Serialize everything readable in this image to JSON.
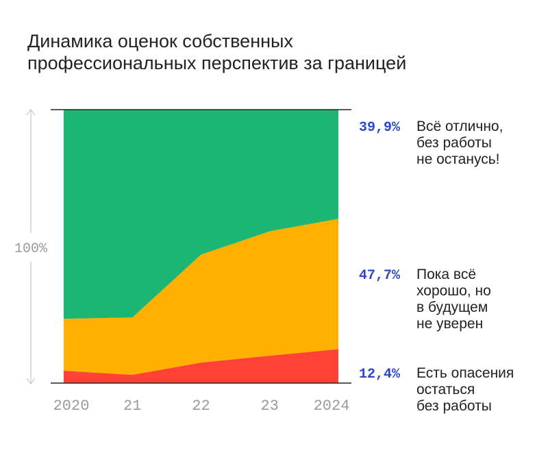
{
  "title": {
    "line1": "Динамика оценок собственных",
    "line2": "профессиональных перспектив за границей"
  },
  "chart_data": {
    "type": "area",
    "stacked": true,
    "normalized": true,
    "title": "Динамика оценок собственных профессиональных перспектив за границей",
    "ylabel": "100%",
    "ylim": [
      0,
      100
    ],
    "x": [
      "2020",
      "21",
      "22",
      "23",
      "2024"
    ],
    "series": [
      {
        "name": "Есть опасения остаться без работы",
        "color": "#ff4136",
        "values": [
          4.5,
          3.0,
          7.5,
          10.0,
          12.4
        ],
        "label_value": "12,4%",
        "label_lines": [
          "Есть опасения",
          "остаться",
          "без работы"
        ]
      },
      {
        "name": "Пока всё хорошо, но в будущем не уверен",
        "color": "#ffb000",
        "values": [
          19.0,
          21.0,
          39.5,
          45.5,
          47.7
        ],
        "label_value": "47,7%",
        "label_lines": [
          "Пока всё",
          "хорошо, но",
          "в будущем",
          "не уверен"
        ]
      },
      {
        "name": "Всё отлично, без работы не останусь!",
        "color": "#1db573",
        "values": [
          76.5,
          76.0,
          53.0,
          44.5,
          39.9
        ],
        "label_value": "39,9%",
        "label_lines": [
          "Всё отлично,",
          "без работы",
          "не останусь!"
        ]
      }
    ],
    "axis_color": "#222222",
    "muted_color": "#9a9a9a"
  }
}
